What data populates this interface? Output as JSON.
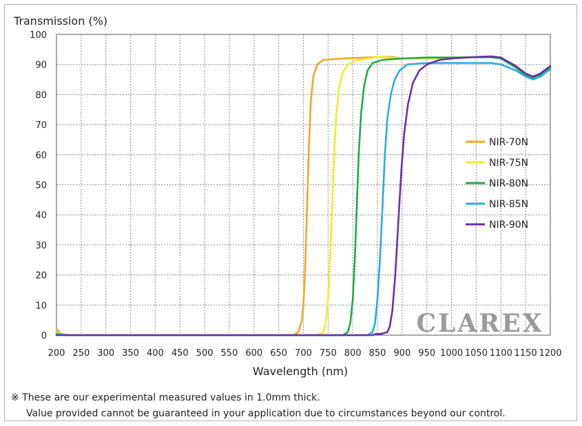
{
  "chart_data": {
    "type": "line",
    "ylabel": "Transmission (%)",
    "xlabel": "Wavelength (nm)",
    "xlim": [
      200,
      1200
    ],
    "ylim": [
      0,
      100
    ],
    "xticks": [
      200,
      250,
      300,
      350,
      400,
      450,
      500,
      550,
      600,
      650,
      700,
      750,
      800,
      850,
      900,
      950,
      1000,
      1050,
      1100,
      1150,
      1200
    ],
    "yticks": [
      0,
      10,
      20,
      30,
      40,
      50,
      60,
      70,
      80,
      90,
      100
    ],
    "grid": true,
    "legend_position": "right",
    "watermark": "CLAREX",
    "series": [
      {
        "name": "NIR-70N",
        "color": "#f5a623",
        "points": [
          [
            200,
            2
          ],
          [
            210,
            0.3
          ],
          [
            230,
            0
          ],
          [
            680,
            0
          ],
          [
            690,
            1
          ],
          [
            697,
            5
          ],
          [
            700,
            10
          ],
          [
            703,
            20
          ],
          [
            707,
            40
          ],
          [
            711,
            62
          ],
          [
            715,
            78
          ],
          [
            720,
            86
          ],
          [
            728,
            90
          ],
          [
            740,
            91.5
          ],
          [
            780,
            92
          ],
          [
            850,
            92.5
          ],
          [
            880,
            92.5
          ],
          [
            900,
            92
          ],
          [
            950,
            92
          ],
          [
            1000,
            92.2
          ],
          [
            1050,
            92.5
          ],
          [
            1080,
            92.5
          ],
          [
            1100,
            92
          ],
          [
            1130,
            89
          ],
          [
            1150,
            86.5
          ],
          [
            1165,
            86
          ],
          [
            1180,
            87
          ],
          [
            1200,
            89.5
          ]
        ]
      },
      {
        "name": "NIR-75N",
        "color": "#f0ed2a",
        "points": [
          [
            200,
            1
          ],
          [
            220,
            0
          ],
          [
            730,
            0
          ],
          [
            740,
            1
          ],
          [
            745,
            4
          ],
          [
            750,
            12
          ],
          [
            754,
            25
          ],
          [
            758,
            42
          ],
          [
            762,
            60
          ],
          [
            767,
            74
          ],
          [
            773,
            83
          ],
          [
            780,
            87.5
          ],
          [
            790,
            90
          ],
          [
            810,
            91.5
          ],
          [
            850,
            92.5
          ],
          [
            900,
            92
          ],
          [
            950,
            92
          ],
          [
            1000,
            92.3
          ],
          [
            1050,
            92.5
          ],
          [
            1080,
            92.6
          ],
          [
            1100,
            92
          ],
          [
            1130,
            89
          ],
          [
            1150,
            86.5
          ],
          [
            1165,
            85.5
          ],
          [
            1180,
            86.5
          ],
          [
            1200,
            89
          ]
        ]
      },
      {
        "name": "NIR-80N",
        "color": "#21a84a",
        "points": [
          [
            200,
            0.5
          ],
          [
            220,
            0
          ],
          [
            780,
            0
          ],
          [
            790,
            1
          ],
          [
            795,
            4
          ],
          [
            800,
            12
          ],
          [
            804,
            25
          ],
          [
            808,
            42
          ],
          [
            812,
            60
          ],
          [
            817,
            74
          ],
          [
            823,
            83
          ],
          [
            830,
            88
          ],
          [
            840,
            90.5
          ],
          [
            860,
            91.5
          ],
          [
            900,
            92
          ],
          [
            950,
            92.3
          ],
          [
            1000,
            92.3
          ],
          [
            1050,
            92.4
          ],
          [
            1080,
            92.4
          ],
          [
            1100,
            92
          ],
          [
            1130,
            89
          ],
          [
            1150,
            86.5
          ],
          [
            1165,
            85.5
          ],
          [
            1180,
            86.5
          ],
          [
            1200,
            89
          ]
        ]
      },
      {
        "name": "NIR-85N",
        "color": "#29abe2",
        "points": [
          [
            200,
            0.5
          ],
          [
            220,
            0
          ],
          [
            830,
            0
          ],
          [
            840,
            1
          ],
          [
            845,
            4
          ],
          [
            850,
            12
          ],
          [
            855,
            25
          ],
          [
            860,
            42
          ],
          [
            865,
            60
          ],
          [
            870,
            72
          ],
          [
            877,
            80
          ],
          [
            885,
            85
          ],
          [
            895,
            88
          ],
          [
            910,
            90
          ],
          [
            950,
            90.5
          ],
          [
            1000,
            90.5
          ],
          [
            1050,
            90.5
          ],
          [
            1080,
            90.5
          ],
          [
            1100,
            90
          ],
          [
            1130,
            88
          ],
          [
            1150,
            86
          ],
          [
            1165,
            85
          ],
          [
            1180,
            86
          ],
          [
            1200,
            88.5
          ]
        ]
      },
      {
        "name": "NIR-90N",
        "color": "#6b2fa6",
        "points": [
          [
            200,
            0
          ],
          [
            840,
            0
          ],
          [
            845,
            0.3
          ],
          [
            860,
            0.5
          ],
          [
            870,
            1
          ],
          [
            875,
            3
          ],
          [
            880,
            8
          ],
          [
            886,
            20
          ],
          [
            892,
            37
          ],
          [
            898,
            54
          ],
          [
            904,
            67
          ],
          [
            912,
            77
          ],
          [
            922,
            84
          ],
          [
            935,
            88
          ],
          [
            950,
            90
          ],
          [
            975,
            91.5
          ],
          [
            1000,
            92
          ],
          [
            1050,
            92.5
          ],
          [
            1080,
            92.7
          ],
          [
            1100,
            92.3
          ],
          [
            1130,
            89.5
          ],
          [
            1150,
            87
          ],
          [
            1165,
            86
          ],
          [
            1180,
            87
          ],
          [
            1200,
            89.5
          ]
        ]
      }
    ]
  },
  "notes": {
    "line1": "※ These are our experimental measured values in 1.0mm thick.",
    "line2": "Value provided cannot be guaranteed in your application due to circumstances beyond our control."
  }
}
